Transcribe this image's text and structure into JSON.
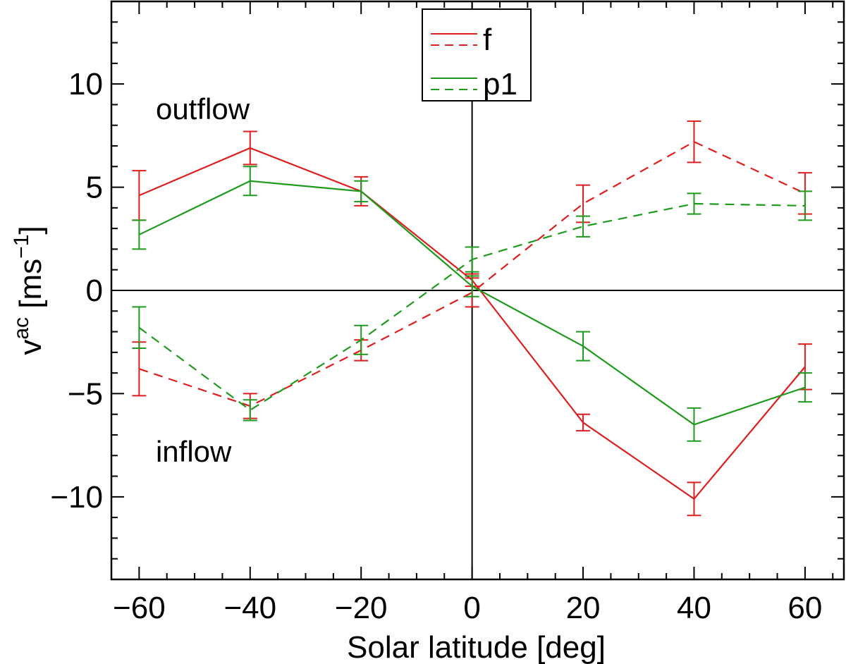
{
  "chart_data": {
    "type": "line",
    "title": "",
    "xlabel": "Solar latitude [deg]",
    "ylabel": {
      "base": "v",
      "superscript": "ac",
      "unit_open": " [ms",
      "unit_exp": "−1",
      "unit_close": "]"
    },
    "xlim": [
      -65,
      67
    ],
    "ylim": [
      -14,
      14
    ],
    "xticks": [
      -60,
      -40,
      -20,
      0,
      20,
      40,
      60
    ],
    "xtick_labels": [
      "−60",
      "−40",
      "−20",
      "0",
      "20",
      "40",
      "60"
    ],
    "yticks": [
      -10,
      -5,
      0,
      5,
      10
    ],
    "ytick_labels": [
      "−10",
      "−5",
      "0",
      "5",
      "10"
    ],
    "annotations": [
      {
        "text": "outflow",
        "x": -57,
        "y": 8.3
      },
      {
        "text": "inflow",
        "x": -57,
        "y": -8.3
      }
    ],
    "legend": {
      "position": "top-center",
      "entries": [
        {
          "label": "f",
          "color": "#dd1f1f"
        },
        {
          "label": "p1",
          "color": "#1e9a1e"
        }
      ]
    },
    "x": [
      -60,
      -40,
      -20,
      0,
      20,
      40,
      60
    ],
    "series": [
      {
        "name": "f (solid)",
        "color": "#dd1f1f",
        "dash": "solid",
        "values": [
          4.6,
          6.9,
          4.8,
          0.5,
          -6.4,
          -10.1,
          -3.7
        ],
        "errors": [
          1.2,
          0.8,
          0.7,
          0.3,
          0.4,
          0.8,
          1.1
        ]
      },
      {
        "name": "f (dashed)",
        "color": "#dd1f1f",
        "dash": "dashed",
        "values": [
          -3.8,
          -5.6,
          -2.9,
          -0.1,
          4.2,
          7.2,
          4.7
        ],
        "errors": [
          1.3,
          0.6,
          0.5,
          0.7,
          0.9,
          1.0,
          1.0
        ]
      },
      {
        "name": "p1 (solid)",
        "color": "#1e9a1e",
        "dash": "solid",
        "values": [
          2.7,
          5.3,
          4.8,
          0.2,
          -2.7,
          -6.5,
          -4.7
        ],
        "errors": [
          0.7,
          0.7,
          0.5,
          0.5,
          0.7,
          0.8,
          0.7
        ]
      },
      {
        "name": "p1 (dashed)",
        "color": "#1e9a1e",
        "dash": "dashed",
        "values": [
          -1.8,
          -5.8,
          -2.4,
          1.5,
          3.1,
          4.2,
          4.1
        ],
        "errors": [
          1.0,
          0.5,
          0.7,
          0.6,
          0.5,
          0.5,
          0.7
        ]
      }
    ]
  }
}
